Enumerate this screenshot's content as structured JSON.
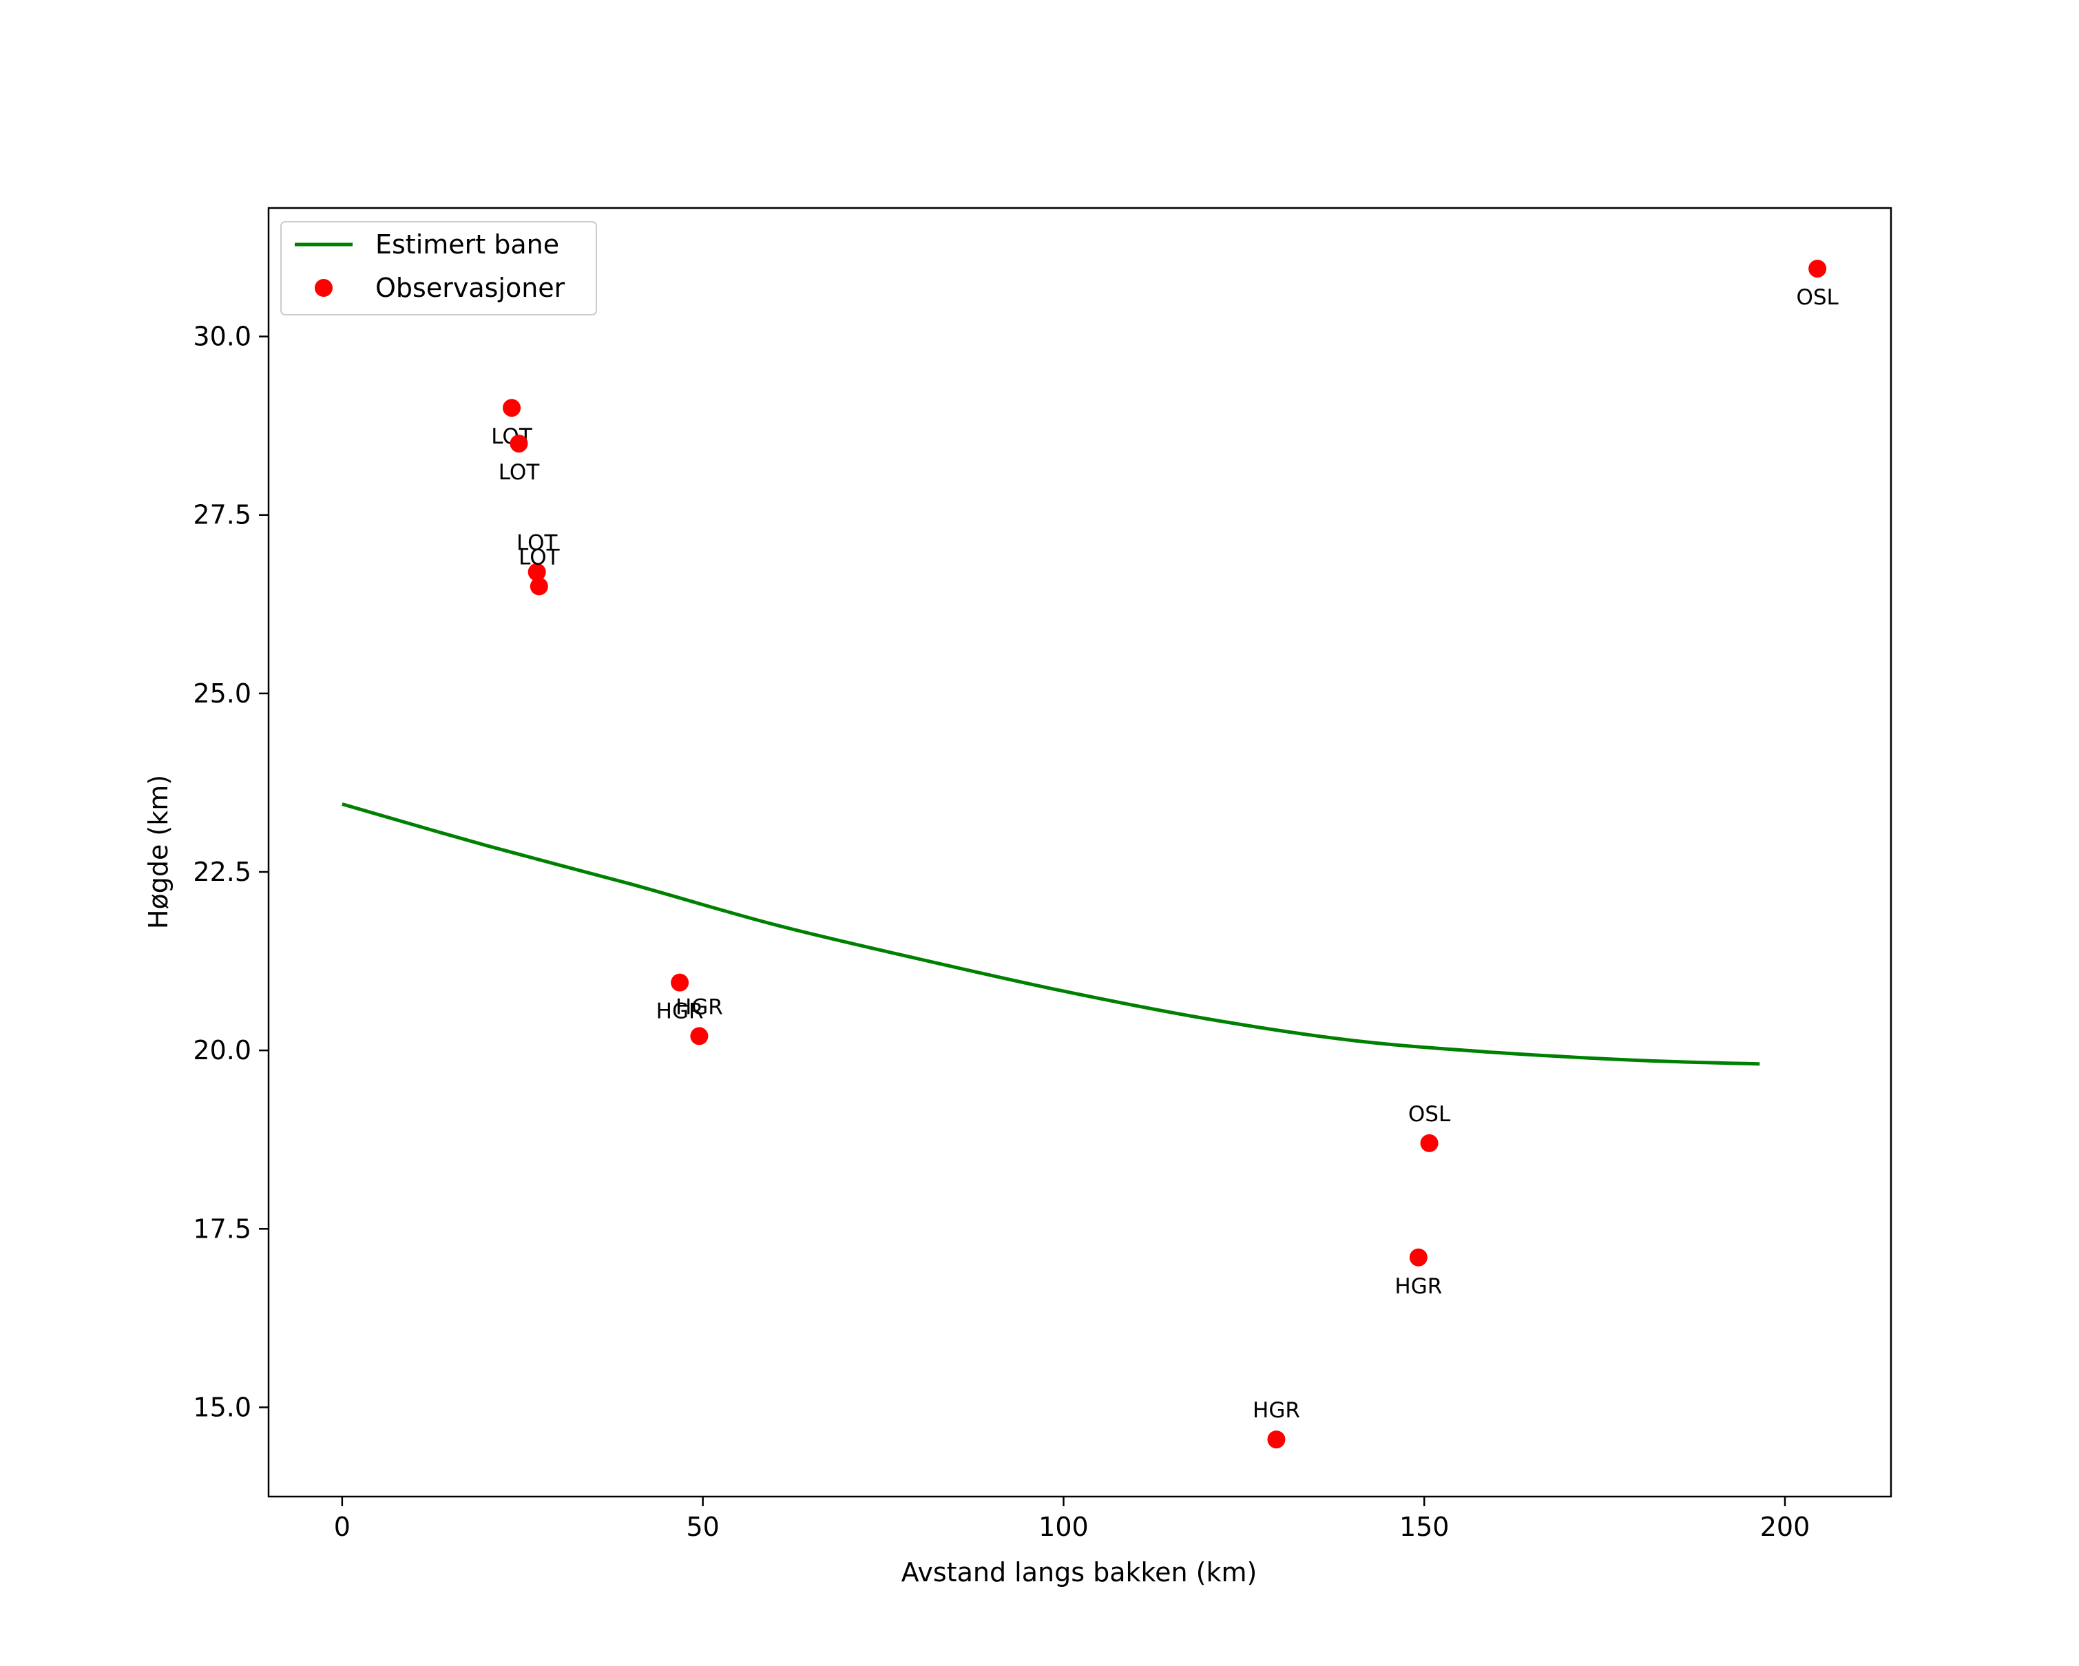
{
  "chart_data": {
    "type": "scatter",
    "title": "",
    "xlabel": "Avstand langs bakken (km)",
    "ylabel": "Høgde (km)",
    "xlim": [
      -10.2,
      214.7
    ],
    "ylim": [
      13.75,
      31.8
    ],
    "xticks": [
      0,
      50,
      100,
      150,
      200
    ],
    "xtick_labels": [
      "0",
      "50",
      "100",
      "150",
      "200"
    ],
    "yticks": [
      15.0,
      17.5,
      20.0,
      22.5,
      25.0,
      27.5,
      30.0
    ],
    "ytick_labels": [
      "15.0",
      "17.5",
      "20.0",
      "22.5",
      "25.0",
      "27.5",
      "30.0"
    ],
    "legend": {
      "location": "top-left",
      "entries": [
        {
          "label": "Estimert bane",
          "kind": "line",
          "color": "#008000"
        },
        {
          "label": "Observasjoner",
          "kind": "marker",
          "color": "#ff0000"
        }
      ]
    },
    "series": [
      {
        "name": "Estimert bane",
        "kind": "line",
        "color": "#008000",
        "x": [
          0,
          20,
          40,
          60,
          80,
          100,
          120,
          140,
          160,
          180,
          196.5
        ],
        "y": [
          23.45,
          22.87,
          22.33,
          21.76,
          21.28,
          20.83,
          20.44,
          20.14,
          19.97,
          19.86,
          19.81
        ]
      },
      {
        "name": "Observasjoner",
        "kind": "scatter",
        "color": "#ff0000",
        "points": [
          {
            "x": 23.5,
            "y": 29.0,
            "label": "LOT",
            "label_pos": "below"
          },
          {
            "x": 24.5,
            "y": 28.5,
            "label": "LOT",
            "label_pos": "below"
          },
          {
            "x": 27.0,
            "y": 26.7,
            "label": "LOT",
            "label_pos": "above"
          },
          {
            "x": 27.3,
            "y": 26.5,
            "label": "LOT",
            "label_pos": "above"
          },
          {
            "x": 46.8,
            "y": 20.95,
            "label": "HGR",
            "label_pos": "below"
          },
          {
            "x": 49.5,
            "y": 20.2,
            "label": "HGR",
            "label_pos": "above"
          },
          {
            "x": 129.5,
            "y": 14.55,
            "label": "HGR",
            "label_pos": "above"
          },
          {
            "x": 149.2,
            "y": 17.1,
            "label": "HGR",
            "label_pos": "below"
          },
          {
            "x": 150.7,
            "y": 18.7,
            "label": "OSL",
            "label_pos": "above"
          },
          {
            "x": 204.5,
            "y": 30.95,
            "label": "OSL",
            "label_pos": "below"
          }
        ]
      }
    ]
  }
}
